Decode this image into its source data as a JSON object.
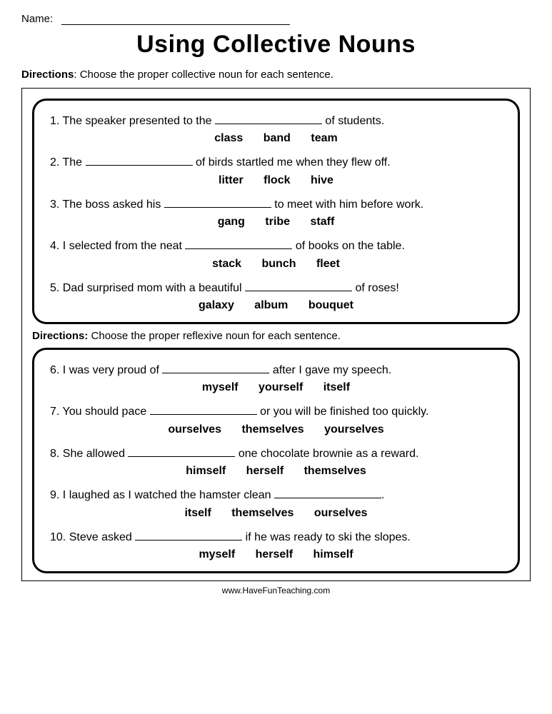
{
  "header": {
    "name_label": "Name:",
    "title": "Using Collective Nouns"
  },
  "directions1": {
    "label": "Directions",
    "text": ":  Choose the proper collective noun for each sentence."
  },
  "section1": {
    "items": [
      {
        "num": "1.",
        "pre": "The speaker presented to the ",
        "post": " of students.",
        "choices": "class      band      team"
      },
      {
        "num": "2.",
        "pre": "The ",
        "post": " of birds startled me when they flew off.",
        "choices": "litter      flock      hive"
      },
      {
        "num": "3.",
        "pre": "The boss asked his ",
        "post": " to meet with him before work.",
        "choices": "gang      tribe      staff"
      },
      {
        "num": "4.",
        "pre": "I selected from the neat ",
        "post": " of books on the table.",
        "choices": "stack      bunch      fleet"
      },
      {
        "num": "5.",
        "pre": "Dad surprised mom with a beautiful ",
        "post": " of roses!",
        "choices": "galaxy      album      bouquet"
      }
    ]
  },
  "directions2": {
    "label": "Directions:",
    "text": " Choose the proper reflexive noun for each sentence."
  },
  "section2": {
    "items": [
      {
        "num": "6.",
        "pre": "I was very proud of  ",
        "post": " after I gave my speech.",
        "choices": "myself      yourself      itself"
      },
      {
        "num": "7.",
        "pre": "You should pace ",
        "post": " or you will be finished too quickly.",
        "choices": "ourselves      themselves      yourselves"
      },
      {
        "num": "8.",
        "pre": "She allowed ",
        "post": " one chocolate brownie as a reward.",
        "choices": "himself      herself      themselves"
      },
      {
        "num": "9.",
        "pre": "I laughed as I watched the hamster clean ",
        "post": ".",
        "choices": "itself      themselves      ourselves"
      },
      {
        "num": "10.",
        "pre": "Steve asked ",
        "post": " if he was ready to ski the slopes.",
        "choices": "myself      herself      himself"
      }
    ]
  },
  "footer": {
    "url": "www.HaveFunTeaching.com"
  }
}
